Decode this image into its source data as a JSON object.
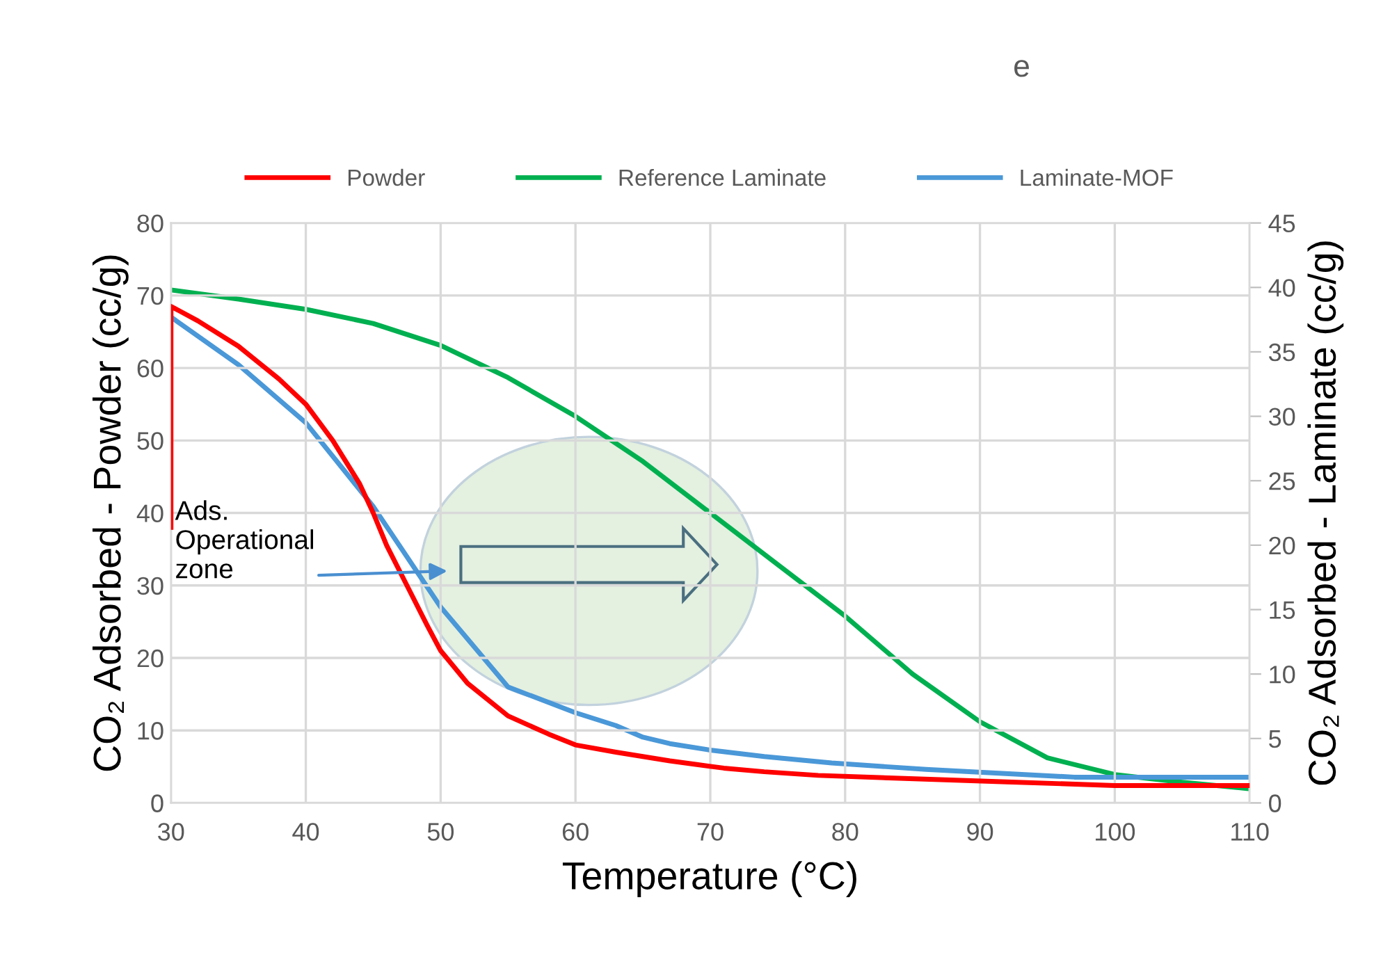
{
  "chart_data": {
    "type": "line",
    "title": "e",
    "xlabel": "Temperature (°C)",
    "ylabel": "CO₂ Adsorbed - Powder (cc/g)",
    "y2label": "CO₂ Adsorbed - Laminate (cc/g)",
    "xlim": [
      30,
      110
    ],
    "xticks": [
      30,
      40,
      50,
      60,
      70,
      80,
      90,
      100,
      110
    ],
    "ylim": [
      0,
      80
    ],
    "yticks": [
      0,
      10,
      20,
      30,
      40,
      50,
      60,
      70,
      80
    ],
    "y2lim": [
      0,
      45
    ],
    "y2ticks": [
      0,
      5,
      10,
      15,
      20,
      25,
      30,
      35,
      40,
      45
    ],
    "grid": true,
    "legend": "top",
    "marker": "none",
    "line_style": "solid",
    "annotations": [
      "Ads.\nOperational\nzone"
    ],
    "series": [
      {
        "name": "Powder",
        "color": "#ff0000",
        "x": [
          30,
          30,
          32,
          35,
          38,
          40,
          42,
          44,
          45,
          46,
          47.5,
          49,
          50,
          52,
          55,
          58,
          60,
          63,
          65,
          67,
          69,
          71,
          74,
          78,
          84,
          92,
          100,
          110
        ],
        "values": [
          38,
          68.5,
          66.5,
          63,
          58.5,
          55,
          50,
          44,
          40,
          35.5,
          30,
          24.5,
          21,
          16.5,
          12,
          9.5,
          8,
          7,
          6.4,
          5.8,
          5.3,
          4.8,
          4.3,
          3.8,
          3.4,
          2.9,
          2.4,
          2.4
        ]
      },
      {
        "name": "Reference Laminate",
        "color": "#00b050",
        "axis": "y2",
        "x": [
          30,
          35,
          40,
          45,
          50,
          55,
          60,
          65,
          70,
          75,
          80,
          85,
          90,
          95,
          100,
          105,
          110
        ],
        "values": [
          39.8,
          39.1,
          38.3,
          37.2,
          35.5,
          33,
          30,
          26.5,
          22.5,
          18.5,
          14.5,
          10,
          6.3,
          3.5,
          2.2,
          1.6,
          1.1
        ]
      },
      {
        "name": "Laminate-MOF",
        "color": "#4a98d8",
        "axis": "y2",
        "x": [
          30,
          35,
          40,
          45,
          50,
          55,
          60,
          63,
          65,
          67,
          70,
          74,
          79,
          86,
          97,
          110
        ],
        "values": [
          37.7,
          34,
          29.5,
          23,
          15.2,
          9,
          7,
          6,
          5.1,
          4.6,
          4.1,
          3.6,
          3.1,
          2.6,
          2.0,
          2.0
        ]
      }
    ]
  }
}
